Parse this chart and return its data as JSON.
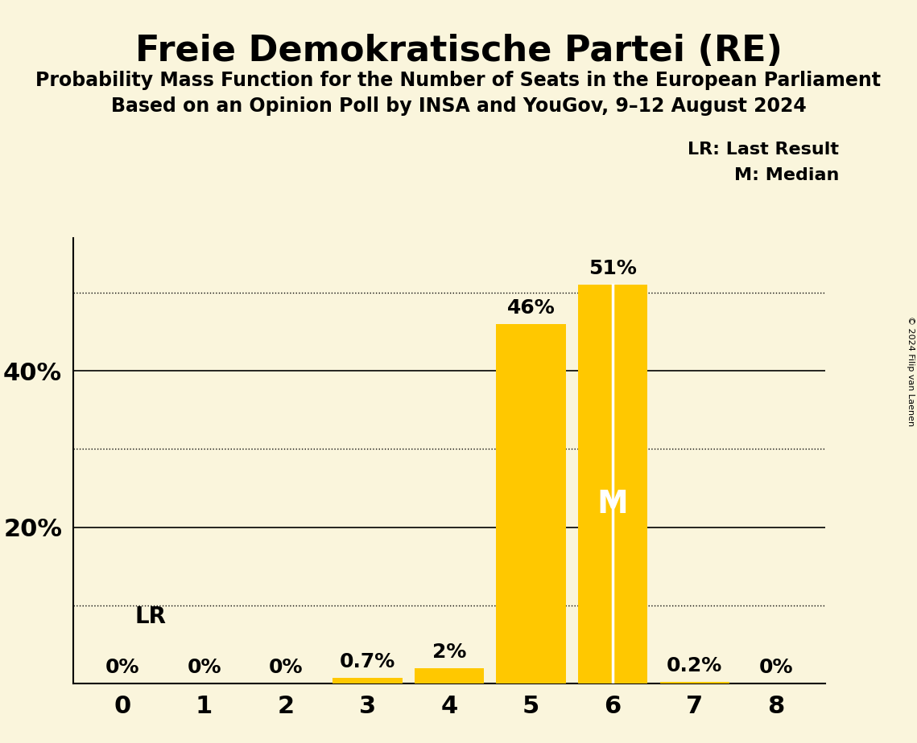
{
  "title": "Freie Demokratische Partei (RE)",
  "subtitle1": "Probability Mass Function for the Number of Seats in the European Parliament",
  "subtitle2": "Based on an Opinion Poll by INSA and YouGov, 9–12 August 2024",
  "copyright": "© 2024 Filip van Laenen",
  "categories": [
    0,
    1,
    2,
    3,
    4,
    5,
    6,
    7,
    8
  ],
  "values": [
    0.0,
    0.0,
    0.0,
    0.7,
    2.0,
    46.0,
    51.0,
    0.2,
    0.0
  ],
  "bar_color": "#FFC800",
  "background_color": "#FAF5DC",
  "median": 6,
  "last_result": 5,
  "dotted_lines": [
    10,
    30,
    50
  ],
  "solid_lines": [
    20,
    40
  ],
  "legend_lr": "LR: Last Result",
  "legend_m": "M: Median",
  "ylim": [
    0,
    57
  ],
  "value_labels": [
    "0%",
    "0%",
    "0%",
    "0.7%",
    "2%",
    "46%",
    "51%",
    "0.2%",
    "0%"
  ]
}
